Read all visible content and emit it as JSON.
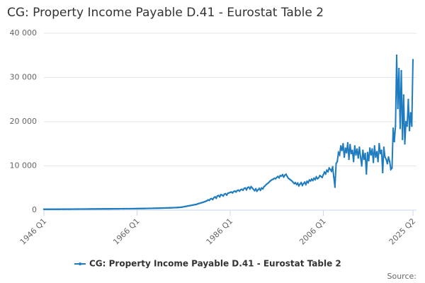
{
  "chart_data": {
    "type": "line",
    "title": "CG: Property Income Payable D.41 - Eurostat Table 2",
    "source": "Source:",
    "categories": [
      "1946 Q1",
      null,
      null,
      null,
      null,
      null,
      null,
      null,
      null,
      null,
      null,
      null,
      null,
      null,
      null,
      null,
      null,
      null,
      null,
      null,
      null,
      null,
      null,
      null,
      null,
      null,
      null,
      null,
      null,
      null,
      null,
      null,
      null,
      null,
      null,
      null,
      null,
      null,
      null,
      null,
      null,
      null,
      null,
      null,
      null,
      null,
      null,
      null,
      null,
      null,
      null,
      null,
      null,
      null,
      null,
      null,
      null,
      null,
      null,
      null,
      null,
      null,
      null,
      null,
      null,
      null,
      null,
      null,
      null,
      null,
      null,
      null,
      null,
      null,
      null,
      null,
      null,
      null,
      null,
      null,
      "1966 Q1",
      null,
      null,
      null,
      null,
      null,
      null,
      null,
      null,
      null,
      null,
      null,
      null,
      null,
      null,
      null,
      null,
      null,
      null,
      null,
      null,
      null,
      null,
      null,
      null,
      null,
      null,
      null,
      null,
      null,
      null,
      null,
      null,
      null,
      null,
      null,
      null,
      null,
      null,
      null,
      null,
      null,
      null,
      null,
      null,
      null,
      null,
      null,
      null,
      null,
      null,
      null,
      null,
      null,
      null,
      null,
      null,
      null,
      null,
      null,
      null,
      null,
      null,
      null,
      null,
      null,
      null,
      null,
      null,
      null,
      null,
      null,
      null,
      null,
      null,
      null,
      null,
      null,
      null,
      null,
      "1986 Q1",
      null,
      null,
      null,
      null,
      null,
      null,
      null,
      null,
      null,
      null,
      null,
      null,
      null,
      null,
      null,
      null,
      null,
      null,
      null,
      null,
      null,
      null,
      null,
      null,
      null,
      null,
      null,
      null,
      null,
      null,
      null,
      null,
      null,
      null,
      null,
      null,
      null,
      null,
      null,
      null,
      null,
      null,
      null,
      null,
      null,
      null,
      null,
      null,
      null,
      null,
      null,
      null,
      null,
      null,
      null,
      null,
      null,
      null,
      null,
      null,
      null,
      null,
      null,
      null,
      null,
      null,
      null,
      null,
      null,
      null,
      null,
      null,
      null,
      null,
      null,
      null,
      null,
      null,
      null,
      "2006 Q1",
      null,
      null,
      null,
      null,
      null,
      null,
      null,
      null,
      null,
      null,
      null,
      null,
      null,
      null,
      null,
      null,
      null,
      null,
      null,
      null,
      null,
      null,
      null,
      null,
      null,
      null,
      null,
      null,
      null,
      null,
      null,
      null,
      null,
      null,
      null,
      null,
      null,
      null,
      null,
      null,
      null,
      null,
      null,
      null,
      null,
      null,
      null,
      null,
      null,
      null,
      null,
      null,
      null,
      null,
      null,
      null,
      null,
      null,
      null,
      null,
      null,
      null,
      null,
      null,
      null,
      null,
      null,
      null,
      null,
      null,
      null,
      null,
      null,
      null,
      null,
      null,
      "2025 Q2"
    ],
    "series": [
      {
        "name": "CG: Property Income Payable D.41 - Eurostat Table 2",
        "color": "#1f7cbf",
        "values": [
          200,
          190,
          210,
          200,
          200,
          195,
          210,
          205,
          200,
          210,
          210,
          205,
          215,
          210,
          210,
          215,
          220,
          210,
          220,
          215,
          220,
          225,
          215,
          230,
          225,
          230,
          235,
          225,
          240,
          235,
          240,
          235,
          245,
          240,
          250,
          245,
          250,
          255,
          245,
          260,
          255,
          260,
          265,
          255,
          270,
          265,
          270,
          275,
          265,
          280,
          275,
          280,
          285,
          275,
          290,
          285,
          290,
          295,
          285,
          300,
          295,
          300,
          305,
          295,
          310,
          305,
          310,
          315,
          305,
          320,
          315,
          320,
          325,
          315,
          330,
          325,
          330,
          335,
          325,
          340,
          340,
          350,
          345,
          360,
          355,
          370,
          365,
          380,
          375,
          390,
          390,
          400,
          395,
          410,
          420,
          415,
          430,
          440,
          435,
          450,
          460,
          470,
          465,
          480,
          490,
          500,
          495,
          510,
          520,
          530,
          540,
          550,
          560,
          570,
          580,
          600,
          620,
          640,
          660,
          700,
          750,
          800,
          850,
          900,
          950,
          1000,
          1050,
          1100,
          1150,
          1200,
          1250,
          1300,
          1400,
          1500,
          1550,
          1650,
          1700,
          1800,
          1900,
          2000,
          2100,
          2300,
          2200,
          2500,
          2600,
          2400,
          2800,
          3000,
          2700,
          3200,
          3300,
          3000,
          3500,
          3400,
          3200,
          3600,
          3700,
          3400,
          3800,
          3900,
          4000,
          4100,
          3900,
          4200,
          4300,
          4100,
          4400,
          4500,
          4300,
          4600,
          4700,
          4500,
          4900,
          5000,
          4600,
          5100,
          5200,
          4800,
          5300,
          5000,
          4700,
          4400,
          4800,
          4300,
          4600,
          4900,
          4500,
          5000,
          4800,
          5300,
          5500,
          5800,
          6000,
          6200,
          6500,
          6700,
          6900,
          7000,
          7200,
          7100,
          7400,
          7600,
          7300,
          7800,
          7700,
          8000,
          7500,
          7900,
          8100,
          7600,
          7200,
          7000,
          6800,
          6600,
          6300,
          6000,
          6200,
          5800,
          6100,
          5500,
          5900,
          6200,
          5600,
          6000,
          6300,
          5800,
          6500,
          6200,
          6800,
          6600,
          7000,
          6700,
          7200,
          6900,
          7500,
          7100,
          7300,
          7800,
          7600,
          7400,
          8000,
          8600,
          8200,
          9000,
          8700,
          9500,
          9200,
          8800,
          9800,
          7500,
          5200,
          10500,
          11000,
          13000,
          12500,
          14500,
          13500,
          15000,
          12000,
          14000,
          13000,
          15200,
          11500,
          14800,
          12800,
          13500,
          11000,
          14500,
          12500,
          13800,
          11800,
          14200,
          12000,
          10000,
          13500,
          11500,
          12800,
          8200,
          13000,
          11200,
          14000,
          12500,
          13800,
          10800,
          14500,
          12000,
          13200,
          11000,
          15000,
          12800,
          13500,
          8500,
          14200,
          12000,
          11500,
          10500,
          12000,
          11000,
          9200,
          9500,
          18500,
          15500,
          19000,
          35000,
          23000,
          32000,
          18500,
          31500,
          16000,
          26000,
          15000,
          20000,
          19000,
          25000,
          18000,
          22000,
          19000,
          34000
        ]
      }
    ],
    "ylim": [
      0,
      40000
    ],
    "yticks": [
      0,
      {
        "value": 10000,
        "label": "10 000"
      },
      {
        "value": 20000,
        "label": "20 000"
      },
      {
        "value": 30000,
        "label": "30 000"
      },
      {
        "value": 40000,
        "label": "40 000"
      }
    ],
    "grid": true,
    "legend": "bottom"
  }
}
